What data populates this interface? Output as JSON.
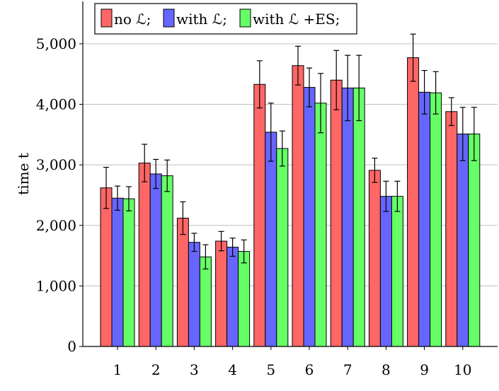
{
  "chart_data": {
    "type": "bar",
    "categories": [
      "1",
      "2",
      "3",
      "4",
      "5",
      "6",
      "7",
      "8",
      "9",
      "10"
    ],
    "ylabel": "time t",
    "xlabel": "",
    "ylim": [
      0,
      5700
    ],
    "yticks": [
      0,
      1000,
      2000,
      3000,
      4000,
      5000
    ],
    "ytick_labels": [
      "0",
      "1,000",
      "2,000",
      "3,000",
      "4,000",
      "5,000"
    ],
    "grid": "horizontal",
    "legend_position": "top-left",
    "series": [
      {
        "name": "no ℒ;",
        "color": "#ff6666",
        "values": [
          2620,
          3030,
          2120,
          1740,
          4330,
          4640,
          4400,
          2910,
          4770,
          3880
        ],
        "errors": [
          340,
          310,
          270,
          160,
          390,
          320,
          490,
          200,
          390,
          230
        ]
      },
      {
        "name": "with ℒ;",
        "color": "#6666ff",
        "values": [
          2450,
          2850,
          1720,
          1640,
          3540,
          4280,
          4270,
          2480,
          4200,
          3510
        ],
        "errors": [
          200,
          240,
          150,
          150,
          480,
          320,
          540,
          250,
          360,
          440
        ]
      },
      {
        "name": "with ℒ +ES;",
        "color": "#66ff66",
        "values": [
          2440,
          2820,
          1480,
          1570,
          3270,
          4020,
          4270,
          2480,
          4190,
          3510
        ],
        "errors": [
          200,
          260,
          200,
          190,
          290,
          490,
          540,
          250,
          350,
          440
        ]
      }
    ]
  }
}
